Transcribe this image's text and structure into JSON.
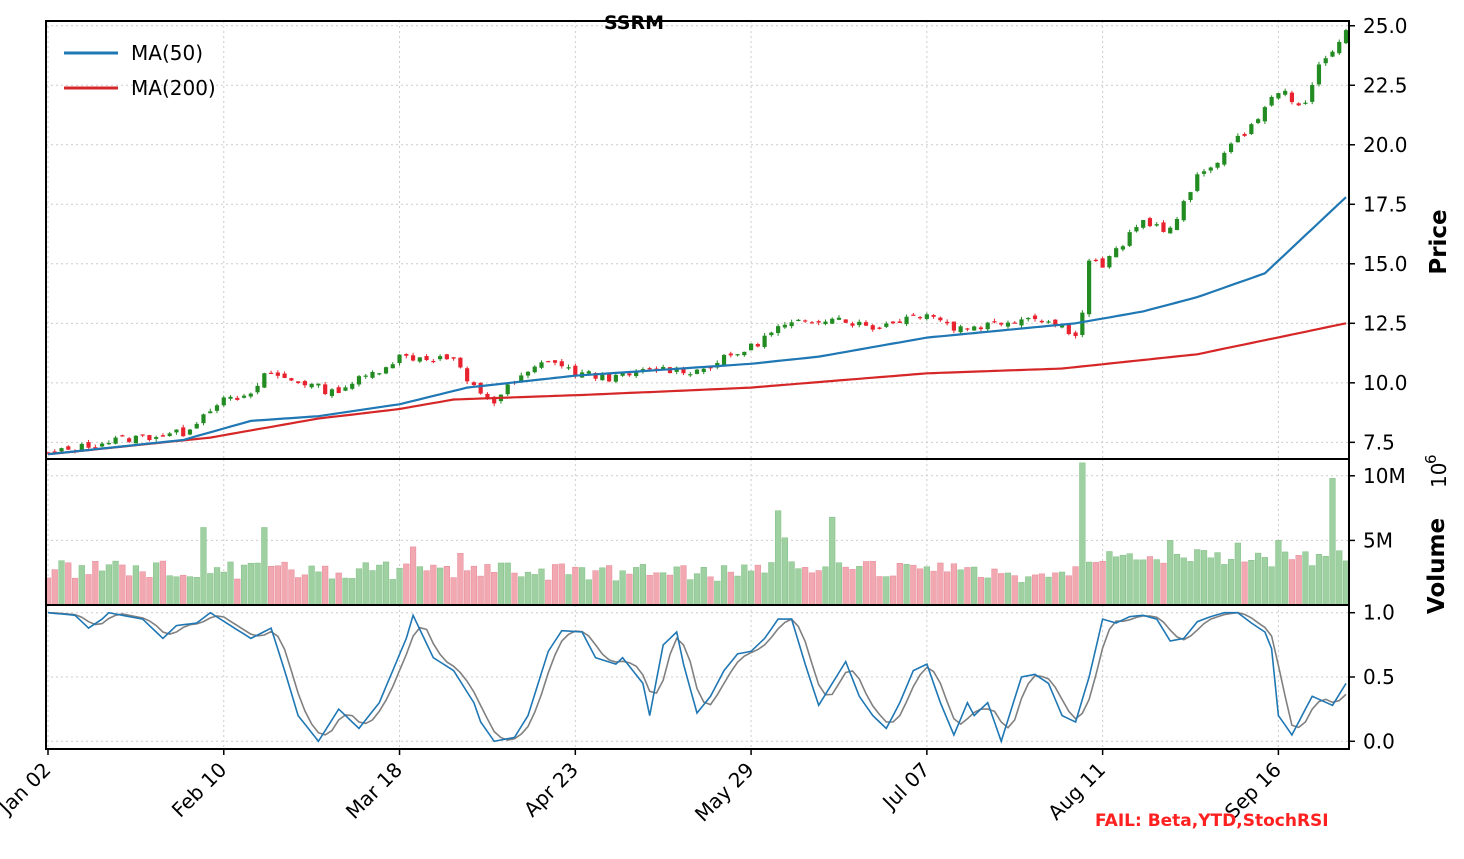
{
  "chart_data": {
    "type": "candlestick",
    "title": "SSRM",
    "x_tick_labels": [
      "Jan 02",
      "Feb 10",
      "Mar 18",
      "Apr 23",
      "May 29",
      "Jul 07",
      "Aug 11",
      "Sep 16"
    ],
    "x_tick_indices": [
      0,
      26,
      52,
      78,
      104,
      130,
      156,
      182
    ],
    "n_days": 193,
    "colors": {
      "up": "#228b22",
      "down": "#e8232f",
      "vol_up": "#9fd0a2",
      "vol_down": "#f2a8b1",
      "ma50": "#1f77b4",
      "ma200": "#d62728",
      "stoch_k": "#1f77b4",
      "stoch_d": "#808080",
      "fail": "#ff2020"
    },
    "price_panel": {
      "ylabel": "Price",
      "ylim": [
        6.8,
        25.2
      ],
      "yticks": [
        "7.5",
        "10.0",
        "12.5",
        "15.0",
        "17.5",
        "20.0",
        "22.5",
        "25.0"
      ],
      "grid": true,
      "legend_position": "top-left",
      "legend": [
        {
          "name": "MA(50)",
          "color": "#1f77b4"
        },
        {
          "name": "MA(200)",
          "color": "#d62728"
        }
      ],
      "close_anchors": [
        [
          0,
          7.0
        ],
        [
          10,
          7.6
        ],
        [
          20,
          7.9
        ],
        [
          25,
          9.2
        ],
        [
          30,
          9.4
        ],
        [
          32,
          10.4
        ],
        [
          38,
          10.0
        ],
        [
          42,
          9.6
        ],
        [
          48,
          10.4
        ],
        [
          52,
          11.1
        ],
        [
          60,
          11.0
        ],
        [
          62,
          10.0
        ],
        [
          66,
          9.2
        ],
        [
          68,
          9.8
        ],
        [
          74,
          11.0
        ],
        [
          78,
          10.4
        ],
        [
          84,
          10.2
        ],
        [
          90,
          10.6
        ],
        [
          96,
          10.5
        ],
        [
          104,
          11.5
        ],
        [
          108,
          12.3
        ],
        [
          116,
          12.8
        ],
        [
          122,
          12.3
        ],
        [
          130,
          13.0
        ],
        [
          134,
          12.3
        ],
        [
          138,
          12.4
        ],
        [
          146,
          12.8
        ],
        [
          152,
          12.1
        ],
        [
          153,
          12.9
        ],
        [
          154,
          15.2
        ],
        [
          156,
          14.9
        ],
        [
          162,
          16.8
        ],
        [
          166,
          16.4
        ],
        [
          170,
          18.6
        ],
        [
          176,
          20.2
        ],
        [
          180,
          21.5
        ],
        [
          182,
          22.3
        ],
        [
          186,
          21.6
        ],
        [
          188,
          23.3
        ],
        [
          192,
          24.8
        ]
      ],
      "ma50_anchors": [
        [
          0,
          7.0
        ],
        [
          20,
          7.6
        ],
        [
          30,
          8.4
        ],
        [
          40,
          8.6
        ],
        [
          52,
          9.1
        ],
        [
          62,
          9.8
        ],
        [
          78,
          10.3
        ],
        [
          104,
          10.8
        ],
        [
          114,
          11.1
        ],
        [
          120,
          11.4
        ],
        [
          130,
          11.9
        ],
        [
          152,
          12.5
        ],
        [
          162,
          13.0
        ],
        [
          170,
          13.6
        ],
        [
          180,
          14.6
        ],
        [
          192,
          17.8
        ]
      ],
      "ma200_anchors": [
        [
          0,
          7.0
        ],
        [
          24,
          7.7
        ],
        [
          40,
          8.5
        ],
        [
          52,
          8.9
        ],
        [
          60,
          9.3
        ],
        [
          80,
          9.5
        ],
        [
          104,
          9.8
        ],
        [
          130,
          10.4
        ],
        [
          150,
          10.6
        ],
        [
          170,
          11.2
        ],
        [
          192,
          12.5
        ]
      ]
    },
    "volume_panel": {
      "ylabel": "Volume",
      "multiplier_label": "10",
      "multiplier_exponent": "6",
      "ylim": [
        0,
        11.3
      ],
      "yticks": [
        "5M",
        "10M"
      ],
      "spikes": [
        [
          23,
          6.0
        ],
        [
          32,
          6.0
        ],
        [
          54,
          4.5
        ],
        [
          61,
          4.0
        ],
        [
          108,
          7.3
        ],
        [
          109,
          5.2
        ],
        [
          116,
          6.8
        ],
        [
          153,
          11.0
        ],
        [
          166,
          5.0
        ],
        [
          176,
          4.8
        ],
        [
          182,
          5.0
        ],
        [
          190,
          9.8
        ],
        [
          191,
          4.2
        ]
      ],
      "level_anchors": [
        [
          0,
          2.6
        ],
        [
          50,
          2.5
        ],
        [
          100,
          2.4
        ],
        [
          110,
          2.8
        ],
        [
          150,
          2.1
        ],
        [
          154,
          3.4
        ],
        [
          170,
          3.6
        ],
        [
          192,
          3.3
        ]
      ]
    },
    "stoch_panel": {
      "ylim": [
        -0.06,
        1.06
      ],
      "yticks": [
        "0.0",
        "0.5",
        "1.0"
      ],
      "k_anchors": [
        [
          0,
          1.0
        ],
        [
          4,
          0.98
        ],
        [
          6,
          0.88
        ],
        [
          8,
          0.95
        ],
        [
          9,
          1.0
        ],
        [
          14,
          0.95
        ],
        [
          17,
          0.8
        ],
        [
          19,
          0.9
        ],
        [
          22,
          0.92
        ],
        [
          24,
          1.0
        ],
        [
          27,
          0.9
        ],
        [
          30,
          0.8
        ],
        [
          33,
          0.88
        ],
        [
          35,
          0.55
        ],
        [
          37,
          0.2
        ],
        [
          40,
          0.0
        ],
        [
          43,
          0.25
        ],
        [
          46,
          0.1
        ],
        [
          49,
          0.3
        ],
        [
          53,
          0.8
        ],
        [
          54,
          0.98
        ],
        [
          57,
          0.65
        ],
        [
          60,
          0.55
        ],
        [
          63,
          0.3
        ],
        [
          64,
          0.15
        ],
        [
          66,
          0.0
        ],
        [
          69,
          0.03
        ],
        [
          71,
          0.2
        ],
        [
          74,
          0.7
        ],
        [
          76,
          0.86
        ],
        [
          79,
          0.85
        ],
        [
          81,
          0.65
        ],
        [
          84,
          0.6
        ],
        [
          85,
          0.65
        ],
        [
          88,
          0.45
        ],
        [
          89,
          0.2
        ],
        [
          91,
          0.75
        ],
        [
          93,
          0.85
        ],
        [
          94,
          0.6
        ],
        [
          96,
          0.22
        ],
        [
          98,
          0.35
        ],
        [
          100,
          0.55
        ],
        [
          102,
          0.68
        ],
        [
          104,
          0.7
        ],
        [
          106,
          0.8
        ],
        [
          108,
          0.95
        ],
        [
          110,
          0.95
        ],
        [
          112,
          0.6
        ],
        [
          114,
          0.28
        ],
        [
          116,
          0.45
        ],
        [
          118,
          0.62
        ],
        [
          120,
          0.35
        ],
        [
          122,
          0.2
        ],
        [
          124,
          0.1
        ],
        [
          126,
          0.3
        ],
        [
          128,
          0.55
        ],
        [
          130,
          0.6
        ],
        [
          132,
          0.3
        ],
        [
          134,
          0.05
        ],
        [
          136,
          0.3
        ],
        [
          137,
          0.2
        ],
        [
          139,
          0.3
        ],
        [
          141,
          0.0
        ],
        [
          144,
          0.5
        ],
        [
          146,
          0.52
        ],
        [
          148,
          0.45
        ],
        [
          150,
          0.2
        ],
        [
          152,
          0.15
        ],
        [
          154,
          0.5
        ],
        [
          156,
          0.95
        ],
        [
          158,
          0.92
        ],
        [
          160,
          0.97
        ],
        [
          162,
          0.98
        ],
        [
          164,
          0.95
        ],
        [
          166,
          0.78
        ],
        [
          168,
          0.8
        ],
        [
          170,
          0.93
        ],
        [
          172,
          0.97
        ],
        [
          174,
          1.0
        ],
        [
          176,
          1.0
        ],
        [
          178,
          0.92
        ],
        [
          180,
          0.85
        ],
        [
          181,
          0.72
        ],
        [
          182,
          0.2
        ],
        [
          184,
          0.05
        ],
        [
          187,
          0.35
        ],
        [
          190,
          0.28
        ],
        [
          192,
          0.45
        ]
      ]
    },
    "annotation": "FAIL: Beta,YTD,StochRSI"
  }
}
